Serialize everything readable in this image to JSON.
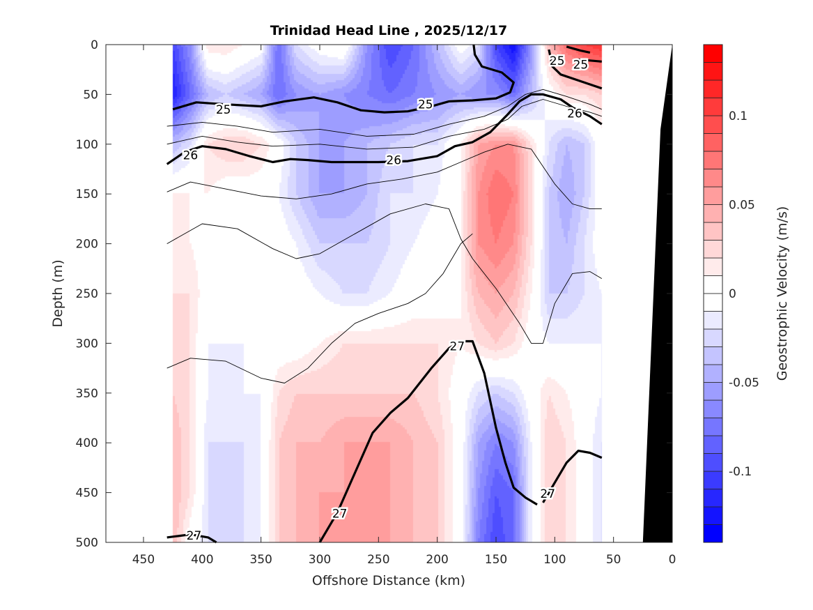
{
  "chart_data": {
    "type": "heatmap",
    "title": "Trinidad Head Line , 2025/12/17",
    "xlabel": "Offshore Distance (km)",
    "ylabel": "Depth (m)",
    "colorbar_label": "Geostrophic Velocity (m/s)",
    "xlim": [
      482,
      0
    ],
    "ylim": [
      0,
      500
    ],
    "x_reversed": true,
    "y_reversed": true,
    "x_ticks": [
      "450",
      "400",
      "350",
      "300",
      "250",
      "200",
      "150",
      "100",
      "50",
      "0"
    ],
    "y_ticks": [
      "0",
      "50",
      "100",
      "150",
      "200",
      "250",
      "300",
      "350",
      "400",
      "450",
      "500"
    ],
    "colorbar_ticks": [
      "0.1",
      "0.05",
      "0",
      "-0.05",
      "-0.1"
    ],
    "colorbar_tick_values": [
      0.1,
      0.05,
      0,
      -0.05,
      -0.1
    ],
    "color_levels": {
      "min": -0.14,
      "max": 0.14,
      "step": 0.01
    },
    "colors": {
      "negative": "#0000ff",
      "zero": "#ffffff",
      "positive": "#ff0000",
      "bathymetry": "#000000",
      "contour": "#000000"
    },
    "distance_km": [
      425,
      410,
      395,
      380,
      365,
      350,
      335,
      320,
      300,
      280,
      260,
      240,
      220,
      200,
      180,
      165,
      150,
      135,
      120,
      105,
      90,
      75,
      60
    ],
    "depth_m": [
      0,
      50,
      100,
      150,
      200,
      250,
      300,
      350,
      400,
      450,
      500
    ],
    "velocity": [
      [
        -0.1,
        -0.06,
        0.02,
        0.02,
        0.01,
        0.0,
        -0.08,
        -0.02,
        0.0,
        0.01,
        -0.06,
        -0.1,
        -0.08,
        -0.04,
        0.0,
        -0.02,
        -0.1,
        -0.13,
        -0.06,
        0.04,
        0.08,
        0.1,
        0.11
      ],
      [
        -0.12,
        -0.08,
        -0.04,
        -0.03,
        -0.04,
        -0.05,
        -0.08,
        -0.06,
        -0.05,
        -0.06,
        -0.07,
        -0.08,
        -0.07,
        -0.06,
        -0.05,
        -0.06,
        -0.06,
        -0.08,
        -0.04,
        0.0,
        0.02,
        0.02,
        0.03
      ],
      [
        -0.04,
        -0.02,
        0.02,
        0.03,
        0.03,
        0.02,
        0.0,
        -0.03,
        -0.05,
        -0.05,
        -0.04,
        -0.03,
        -0.02,
        -0.02,
        0.01,
        0.05,
        0.06,
        0.06,
        0.02,
        -0.02,
        -0.04,
        -0.03,
        0.0
      ],
      [
        0.01,
        0.01,
        0.01,
        0.0,
        0.0,
        0.0,
        -0.01,
        -0.03,
        -0.05,
        -0.05,
        -0.04,
        -0.02,
        -0.02,
        -0.01,
        0.01,
        0.06,
        0.08,
        0.07,
        0.02,
        -0.03,
        -0.05,
        -0.03,
        0.0
      ],
      [
        0.02,
        0.01,
        0.0,
        0.0,
        0.0,
        0.0,
        0.0,
        -0.01,
        -0.03,
        -0.03,
        -0.03,
        -0.02,
        -0.01,
        0.0,
        0.01,
        0.06,
        0.07,
        0.06,
        0.02,
        -0.03,
        -0.04,
        -0.02,
        0.0
      ],
      [
        0.02,
        0.02,
        0.0,
        0.0,
        0.0,
        0.0,
        0.0,
        0.0,
        -0.01,
        -0.02,
        -0.02,
        -0.01,
        0.0,
        0.0,
        0.01,
        0.04,
        0.05,
        0.04,
        0.01,
        -0.03,
        -0.03,
        -0.02,
        -0.01
      ],
      [
        0.03,
        0.02,
        -0.01,
        -0.01,
        -0.01,
        0.0,
        0.0,
        0.0,
        0.01,
        0.02,
        0.02,
        0.02,
        0.02,
        0.02,
        0.01,
        0.02,
        0.03,
        0.02,
        0.0,
        -0.01,
        -0.01,
        -0.01,
        -0.01
      ],
      [
        0.03,
        0.02,
        -0.01,
        -0.01,
        -0.01,
        -0.01,
        0.02,
        0.03,
        0.03,
        0.03,
        0.03,
        0.03,
        0.03,
        0.02,
        0.0,
        -0.02,
        -0.03,
        -0.02,
        0.0,
        0.02,
        0.01,
        0.0,
        -0.01
      ],
      [
        0.04,
        0.02,
        -0.02,
        -0.02,
        -0.02,
        -0.01,
        0.03,
        0.04,
        0.04,
        0.05,
        0.05,
        0.05,
        0.04,
        0.03,
        0.0,
        -0.05,
        -0.07,
        -0.06,
        -0.01,
        0.03,
        0.02,
        0.0,
        -0.02
      ],
      [
        0.04,
        0.02,
        -0.02,
        -0.03,
        -0.02,
        -0.01,
        0.03,
        0.04,
        0.05,
        0.05,
        0.05,
        0.05,
        0.04,
        0.03,
        0.0,
        -0.06,
        -0.09,
        -0.08,
        -0.01,
        0.03,
        0.02,
        0.0,
        -0.02
      ],
      [
        0.04,
        0.0,
        -0.02,
        -0.03,
        -0.02,
        -0.01,
        0.03,
        0.04,
        0.05,
        0.06,
        0.06,
        0.05,
        0.04,
        0.03,
        0.0,
        -0.07,
        -0.1,
        -0.08,
        -0.01,
        0.03,
        0.02,
        0.0,
        -0.02
      ]
    ],
    "labeled_contours": [
      {
        "value": "25",
        "points": [
          [
            425,
            65
          ],
          [
            405,
            58
          ],
          [
            380,
            60
          ],
          [
            350,
            62
          ],
          [
            330,
            57
          ],
          [
            305,
            53
          ],
          [
            285,
            58
          ],
          [
            265,
            66
          ],
          [
            245,
            68
          ],
          [
            225,
            67
          ],
          [
            205,
            62
          ],
          [
            190,
            57
          ],
          [
            170,
            56
          ],
          [
            150,
            54
          ],
          [
            138,
            48
          ],
          [
            135,
            38
          ],
          [
            145,
            28
          ],
          [
            162,
            22
          ],
          [
            168,
            10
          ],
          [
            169,
            0
          ]
        ]
      },
      {
        "value": "25",
        "points": [
          [
            105,
            5
          ],
          [
            102,
            22
          ],
          [
            95,
            30
          ],
          [
            80,
            36
          ],
          [
            60,
            44
          ]
        ]
      },
      {
        "value": "25",
        "points": [
          [
            80,
            15
          ],
          [
            70,
            16
          ],
          [
            60,
            17
          ]
        ]
      },
      {
        "value": "25",
        "points": [
          [
            90,
            2
          ],
          [
            78,
            6
          ],
          [
            70,
            8
          ]
        ]
      },
      {
        "value": "26",
        "points": [
          [
            430,
            120
          ],
          [
            415,
            108
          ],
          [
            400,
            102
          ],
          [
            380,
            105
          ],
          [
            360,
            112
          ],
          [
            340,
            118
          ],
          [
            325,
            115
          ],
          [
            310,
            116
          ],
          [
            290,
            118
          ],
          [
            270,
            118
          ],
          [
            250,
            118
          ],
          [
            225,
            117
          ],
          [
            200,
            112
          ],
          [
            185,
            102
          ],
          [
            170,
            98
          ],
          [
            155,
            88
          ],
          [
            140,
            70
          ],
          [
            130,
            57
          ],
          [
            120,
            50
          ],
          [
            110,
            50
          ],
          [
            95,
            55
          ],
          [
            85,
            63
          ],
          [
            70,
            72
          ],
          [
            60,
            80
          ]
        ]
      },
      {
        "value": "27",
        "points": [
          [
            300,
            500
          ],
          [
            285,
            470
          ],
          [
            270,
            430
          ],
          [
            255,
            390
          ],
          [
            240,
            370
          ],
          [
            225,
            355
          ],
          [
            205,
            325
          ],
          [
            190,
            305
          ],
          [
            180,
            298
          ],
          [
            170,
            298
          ],
          [
            160,
            330
          ],
          [
            150,
            385
          ],
          [
            142,
            420
          ],
          [
            135,
            445
          ],
          [
            125,
            455
          ],
          [
            115,
            462
          ]
        ]
      },
      {
        "value": "27",
        "points": [
          [
            110,
            460
          ],
          [
            100,
            440
          ],
          [
            90,
            420
          ],
          [
            80,
            408
          ],
          [
            70,
            410
          ],
          [
            60,
            415
          ]
        ]
      },
      {
        "value": "27",
        "points": [
          [
            430,
            495
          ],
          [
            410,
            492
          ],
          [
            395,
            495
          ],
          [
            388,
            500
          ]
        ]
      }
    ],
    "contour_labels": [
      {
        "text": "25",
        "at": [
          382,
          65
        ]
      },
      {
        "text": "25",
        "at": [
          210,
          60
        ]
      },
      {
        "text": "25",
        "at": [
          98,
          16
        ]
      },
      {
        "text": "25",
        "at": [
          78,
          20
        ]
      },
      {
        "text": "26",
        "at": [
          410,
          111
        ]
      },
      {
        "text": "26",
        "at": [
          237,
          116
        ]
      },
      {
        "text": "26",
        "at": [
          83,
          69
        ]
      },
      {
        "text": "27",
        "at": [
          183,
          303
        ]
      },
      {
        "text": "27",
        "at": [
          407,
          493
        ]
      },
      {
        "text": "27",
        "at": [
          283,
          471
        ]
      },
      {
        "text": "27",
        "at": [
          106,
          451
        ]
      }
    ],
    "thin_contours": [
      [
        [
          430,
          82
        ],
        [
          400,
          78
        ],
        [
          370,
          82
        ],
        [
          340,
          88
        ],
        [
          300,
          85
        ],
        [
          260,
          92
        ],
        [
          220,
          90
        ],
        [
          190,
          80
        ],
        [
          160,
          72
        ],
        [
          140,
          62
        ],
        [
          125,
          50
        ],
        [
          110,
          45
        ],
        [
          90,
          52
        ],
        [
          70,
          60
        ],
        [
          60,
          65
        ]
      ],
      [
        [
          430,
          100
        ],
        [
          400,
          92
        ],
        [
          370,
          98
        ],
        [
          340,
          102
        ],
        [
          300,
          100
        ],
        [
          260,
          105
        ],
        [
          220,
          103
        ],
        [
          190,
          92
        ],
        [
          160,
          85
        ],
        [
          140,
          75
        ],
        [
          128,
          62
        ],
        [
          110,
          55
        ],
        [
          90,
          62
        ],
        [
          70,
          68
        ],
        [
          60,
          72
        ]
      ],
      [
        [
          430,
          148
        ],
        [
          410,
          138
        ],
        [
          380,
          145
        ],
        [
          350,
          152
        ],
        [
          320,
          155
        ],
        [
          290,
          150
        ],
        [
          260,
          140
        ],
        [
          230,
          135
        ],
        [
          200,
          128
        ],
        [
          180,
          118
        ],
        [
          160,
          108
        ],
        [
          140,
          100
        ],
        [
          120,
          105
        ],
        [
          100,
          140
        ],
        [
          85,
          160
        ],
        [
          70,
          165
        ],
        [
          60,
          165
        ]
      ],
      [
        [
          430,
          200
        ],
        [
          400,
          180
        ],
        [
          370,
          185
        ],
        [
          340,
          205
        ],
        [
          320,
          215
        ],
        [
          300,
          210
        ],
        [
          270,
          190
        ],
        [
          240,
          170
        ],
        [
          210,
          160
        ],
        [
          190,
          165
        ],
        [
          180,
          195
        ],
        [
          170,
          215
        ],
        [
          150,
          245
        ],
        [
          130,
          280
        ],
        [
          120,
          300
        ],
        [
          110,
          300
        ],
        [
          100,
          260
        ],
        [
          85,
          230
        ],
        [
          70,
          228
        ],
        [
          60,
          235
        ]
      ],
      [
        [
          430,
          325
        ],
        [
          410,
          315
        ],
        [
          380,
          318
        ],
        [
          350,
          335
        ],
        [
          330,
          340
        ],
        [
          310,
          325
        ],
        [
          290,
          300
        ],
        [
          270,
          280
        ],
        [
          250,
          270
        ],
        [
          225,
          260
        ],
        [
          210,
          250
        ],
        [
          195,
          230
        ],
        [
          180,
          200
        ],
        [
          170,
          190
        ]
      ]
    ],
    "bathymetry": [
      [
        25,
        500
      ],
      [
        10,
        85
      ],
      [
        0,
        0
      ],
      [
        0,
        500
      ]
    ]
  }
}
